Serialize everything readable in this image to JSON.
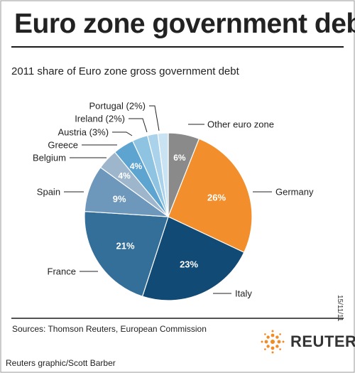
{
  "header": {
    "title": "Euro zone government debt",
    "subtitle": "2011 share of Euro zone gross government debt",
    "date": "15/11/11"
  },
  "footer": {
    "sources": "Sources: Thomson Reuters, European Commission",
    "credit": "Reuters graphic/Scott Barber",
    "brand": "REUTERS"
  },
  "colors": {
    "text": "#222222",
    "rule": "#1a1a1a",
    "brand_orange": "#f28a25"
  },
  "chart_data": {
    "type": "pie",
    "title": "2011 share of Euro zone gross government debt",
    "slices": [
      {
        "label": "Other euro zone",
        "value": 6,
        "display": "6%",
        "color": "#8a8a8a"
      },
      {
        "label": "Germany",
        "value": 26,
        "display": "26%",
        "color": "#f28e2b"
      },
      {
        "label": "Italy",
        "value": 23,
        "display": "23%",
        "color": "#114a74"
      },
      {
        "label": "France",
        "value": 21,
        "display": "21%",
        "color": "#346f99"
      },
      {
        "label": "Spain",
        "value": 9,
        "display": "9%",
        "color": "#6d97bb"
      },
      {
        "label": "Belgium",
        "value": 4,
        "display": "4%",
        "color": "#9db6cc"
      },
      {
        "label": "Greece",
        "value": 4,
        "display": "4%",
        "color": "#5ea4d0"
      },
      {
        "label": "Austria (3%)",
        "value": 3,
        "display": "",
        "color": "#8ec3e2"
      },
      {
        "label": "Ireland (2%)",
        "value": 2,
        "display": "",
        "color": "#aad2ea"
      },
      {
        "label": "Portugal (2%)",
        "value": 2,
        "display": "",
        "color": "#c9e3f3"
      }
    ]
  }
}
